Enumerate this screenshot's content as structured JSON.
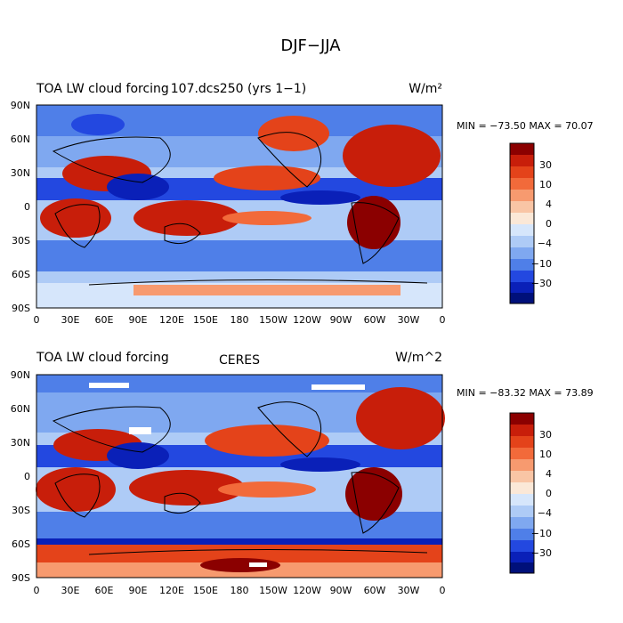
{
  "page_title": "DJF−JJA",
  "colorbar_labels": [
    "30",
    "10",
    "4",
    "0",
    "−4",
    "−10",
    "−30"
  ],
  "colors": [
    "#8b0000",
    "#c81e0a",
    "#e4431a",
    "#f26a3a",
    "#f79a6f",
    "#f9c5a5",
    "#fbe8d7",
    "#d6e6fb",
    "#aecbf6",
    "#7fa8f0",
    "#4f7fe8",
    "#2348e0",
    "#0a20b8",
    "#00107a"
  ],
  "panels": [
    {
      "id": "model",
      "left_title": "TOA LW cloud forcing",
      "center_title": "107.dcs250 (yrs 1−1)",
      "units": "W/m²",
      "stats": "MIN = −73.50 MAX =  70.07"
    },
    {
      "id": "obs",
      "left_title": "TOA LW cloud forcing",
      "center_title": "CERES",
      "units": "W/m^2",
      "stats": "MIN = −83.32 MAX =  73.89"
    }
  ],
  "lat_ticks": [
    "90N",
    "60N",
    "30N",
    "0",
    "30S",
    "60S",
    "90S"
  ],
  "lon_ticks": [
    "0",
    "30E",
    "60E",
    "90E",
    "120E",
    "150E",
    "180",
    "150W",
    "120W",
    "90W",
    "60W",
    "30W",
    "0"
  ]
}
